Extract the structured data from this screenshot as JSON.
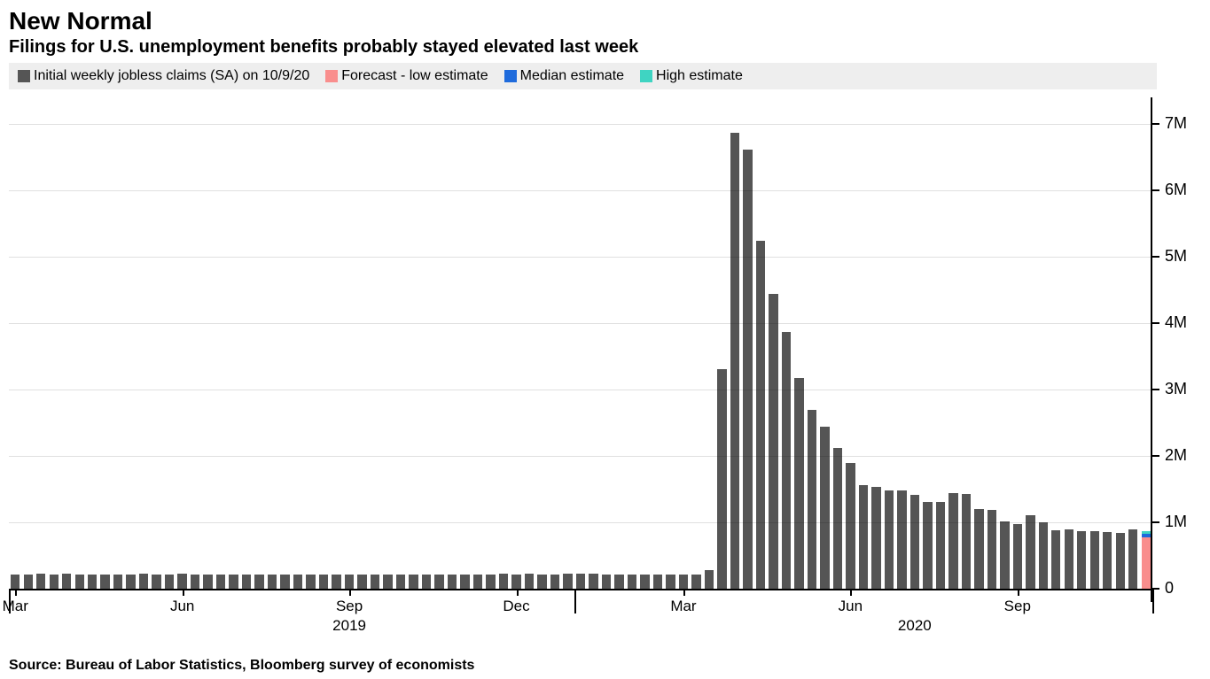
{
  "title": "New Normal",
  "subtitle": "Filings for U.S. unemployment benefits probably stayed elevated last week",
  "source": "Source: Bureau of Labor Statistics, Bloomberg survey of economists",
  "legend": [
    {
      "label": "Initial weekly jobless claims (SA) on 10/9/20",
      "color": "#555555"
    },
    {
      "label": "Forecast - low estimate",
      "color": "#f98e8d"
    },
    {
      "label": "Median estimate",
      "color": "#1f6bdc"
    },
    {
      "label": "High estimate",
      "color": "#3fd4c2"
    }
  ],
  "chart": {
    "type": "bar",
    "background_color": "#ffffff",
    "grid_color": "#e5e5e5",
    "axis_color": "#000000",
    "text_color": "#000000",
    "ylim_min": -200000,
    "ylim_max": 7400000,
    "y_ticks": [
      0,
      1000000,
      2000000,
      3000000,
      4000000,
      5000000,
      6000000,
      7000000
    ],
    "y_tick_labels": [
      "0",
      "1M",
      "2M",
      "3M",
      "4M",
      "5M",
      "6M",
      "7M"
    ],
    "bar_color": "#555555",
    "bar_width_ratio": 0.72,
    "data": [
      220000,
      218000,
      221000,
      217000,
      222000,
      219000,
      216000,
      215000,
      220000,
      218000,
      221000,
      219000,
      217000,
      223000,
      219000,
      216000,
      214000,
      215000,
      218000,
      220000,
      217000,
      216000,
      219000,
      218000,
      215000,
      213000,
      216000,
      218000,
      217000,
      215000,
      219000,
      218000,
      216000,
      214000,
      217000,
      215000,
      218000,
      220000,
      222000,
      219000,
      221000,
      218000,
      216000,
      222000,
      225000,
      223000,
      220000,
      218000,
      216000,
      215000,
      217000,
      214000,
      216000,
      219000,
      282000,
      3307000,
      6867000,
      6615000,
      5237000,
      4442000,
      3867000,
      3176000,
      2687000,
      2446000,
      2123000,
      1897000,
      1566000,
      1540000,
      1482000,
      1480000,
      1408000,
      1310000,
      1310000,
      1435000,
      1422000,
      1200000,
      1191000,
      1011000,
      971000,
      1104000,
      1006000,
      884000,
      893000,
      866000,
      873000,
      849000,
      840000,
      898000
    ],
    "forecast": {
      "low": 780000,
      "median": 830000,
      "high": 860000,
      "low_color": "#f98e8d",
      "median_color": "#1f6bdc",
      "high_color": "#3fd4c2"
    },
    "x_months": [
      {
        "label": "Mar",
        "index": 0
      },
      {
        "label": "Jun",
        "index": 13
      },
      {
        "label": "Sep",
        "index": 26
      },
      {
        "label": "Dec",
        "index": 39
      },
      {
        "label": "Mar",
        "index": 52
      },
      {
        "label": "Jun",
        "index": 65
      },
      {
        "label": "Sep",
        "index": 78
      }
    ],
    "x_years": [
      {
        "label": "2019",
        "center_index": 26,
        "divider_index": 0
      },
      {
        "label": "2020",
        "center_index": 70,
        "divider_index": 44
      }
    ],
    "title_fontsize": 28,
    "subtitle_fontsize": 20,
    "axis_fontsize": 18,
    "legend_fontsize": 16,
    "source_fontsize": 16
  }
}
